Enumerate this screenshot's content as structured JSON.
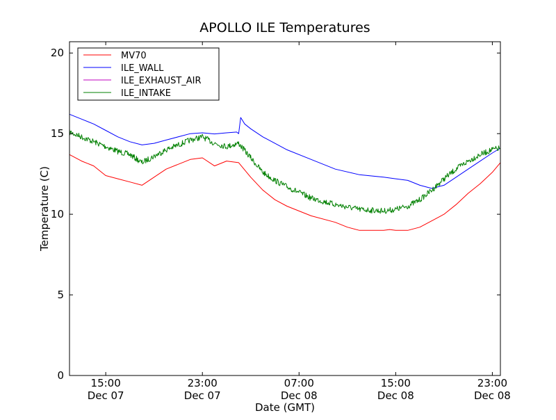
{
  "chart_data": {
    "type": "line",
    "title": "APOLLO ILE Temperatures",
    "xlabel": "Date (GMT)",
    "ylabel": "Temperature (C)",
    "x_unit": "GMT datetime",
    "xlim": [
      "2011-12-07 12:00",
      "2011-12-08 23:40"
    ],
    "ylim": [
      0,
      20.7
    ],
    "yticks": [
      0,
      5,
      10,
      15,
      20
    ],
    "xticks": [
      {
        "x": "2011-12-07 15:00",
        "time": "15:00",
        "date": "Dec 07"
      },
      {
        "x": "2011-12-07 23:00",
        "time": "23:00",
        "date": "Dec 07"
      },
      {
        "x": "2011-12-08 07:00",
        "time": "07:00",
        "date": "Dec 08"
      },
      {
        "x": "2011-12-08 15:00",
        "time": "15:00",
        "date": "Dec 08"
      },
      {
        "x": "2011-12-08 23:00",
        "time": "23:00",
        "date": "Dec 08"
      }
    ],
    "grid": false,
    "legend": {
      "position": "top-left"
    },
    "series": [
      {
        "name": "MV70",
        "color": "#ff0000",
        "noise": 0,
        "x": [
          "2011-12-07 12:00",
          "2011-12-07 13:00",
          "2011-12-07 14:00",
          "2011-12-07 15:00",
          "2011-12-07 16:00",
          "2011-12-07 17:00",
          "2011-12-07 18:00",
          "2011-12-07 19:00",
          "2011-12-07 20:00",
          "2011-12-07 22:00",
          "2011-12-07 23:00",
          "2011-12-08 00:00",
          "2011-12-08 01:00",
          "2011-12-08 02:00",
          "2011-12-08 03:00",
          "2011-12-08 04:00",
          "2011-12-08 05:00",
          "2011-12-08 06:00",
          "2011-12-08 08:00",
          "2011-12-08 10:00",
          "2011-12-08 11:00",
          "2011-12-08 12:00",
          "2011-12-08 14:00",
          "2011-12-08 14:30",
          "2011-12-08 15:00",
          "2011-12-08 16:00",
          "2011-12-08 17:00",
          "2011-12-08 18:00",
          "2011-12-08 19:00",
          "2011-12-08 20:00",
          "2011-12-08 21:00",
          "2011-12-08 22:00",
          "2011-12-08 23:00",
          "2011-12-08 23:40"
        ],
        "y": [
          13.7,
          13.3,
          13.0,
          12.4,
          12.2,
          12.0,
          11.8,
          12.3,
          12.8,
          13.4,
          13.5,
          13.0,
          13.3,
          13.2,
          12.3,
          11.5,
          10.9,
          10.5,
          9.9,
          9.5,
          9.2,
          9.0,
          9.0,
          9.05,
          9.0,
          9.0,
          9.2,
          9.6,
          10.0,
          10.6,
          11.3,
          11.9,
          12.6,
          13.2
        ]
      },
      {
        "name": "ILE_WALL",
        "color": "#0000ff",
        "noise": 0,
        "x": [
          "2011-12-07 12:00",
          "2011-12-07 13:00",
          "2011-12-07 14:00",
          "2011-12-07 15:00",
          "2011-12-07 16:00",
          "2011-12-07 17:00",
          "2011-12-07 18:00",
          "2011-12-07 19:00",
          "2011-12-07 20:00",
          "2011-12-07 22:00",
          "2011-12-07 23:00",
          "2011-12-08 00:00",
          "2011-12-08 01:00",
          "2011-12-08 01:50",
          "2011-12-08 02:00",
          "2011-12-08 02:10",
          "2011-12-08 02:30",
          "2011-12-08 03:00",
          "2011-12-08 04:00",
          "2011-12-08 05:00",
          "2011-12-08 06:00",
          "2011-12-08 08:00",
          "2011-12-08 10:00",
          "2011-12-08 12:00",
          "2011-12-08 14:00",
          "2011-12-08 15:00",
          "2011-12-08 16:00",
          "2011-12-08 17:00",
          "2011-12-08 18:00",
          "2011-12-08 19:00",
          "2011-12-08 20:00",
          "2011-12-08 21:00",
          "2011-12-08 22:00",
          "2011-12-08 23:00",
          "2011-12-08 23:40"
        ],
        "y": [
          16.2,
          15.9,
          15.6,
          15.2,
          14.8,
          14.5,
          14.3,
          14.4,
          14.6,
          15.0,
          15.05,
          14.98,
          15.05,
          15.1,
          15.0,
          16.0,
          15.6,
          15.3,
          14.8,
          14.4,
          14.0,
          13.4,
          12.8,
          12.45,
          12.3,
          12.2,
          12.1,
          11.8,
          11.6,
          11.8,
          12.3,
          12.8,
          13.3,
          13.8,
          14.1
        ]
      },
      {
        "name": "ILE_EXHAUST_AIR",
        "color": "#bf00bf",
        "noise": 0,
        "x": [],
        "y": []
      },
      {
        "name": "ILE_INTAKE",
        "color": "#008000",
        "noise": 0.18,
        "x": [
          "2011-12-07 12:00",
          "2011-12-07 13:00",
          "2011-12-07 14:00",
          "2011-12-07 15:00",
          "2011-12-07 16:00",
          "2011-12-07 17:00",
          "2011-12-07 18:00",
          "2011-12-07 19:00",
          "2011-12-07 20:00",
          "2011-12-07 22:00",
          "2011-12-07 23:00",
          "2011-12-08 00:00",
          "2011-12-08 01:00",
          "2011-12-08 02:00",
          "2011-12-08 03:00",
          "2011-12-08 04:00",
          "2011-12-08 05:00",
          "2011-12-08 06:00",
          "2011-12-08 08:00",
          "2011-12-08 10:00",
          "2011-12-08 12:00",
          "2011-12-08 14:00",
          "2011-12-08 15:00",
          "2011-12-08 16:00",
          "2011-12-08 17:00",
          "2011-12-08 18:00",
          "2011-12-08 19:00",
          "2011-12-08 20:00",
          "2011-12-08 21:00",
          "2011-12-08 22:00",
          "2011-12-08 23:00",
          "2011-12-08 23:40"
        ],
        "y": [
          15.1,
          14.8,
          14.5,
          14.2,
          13.9,
          13.7,
          13.2,
          13.6,
          14.0,
          14.6,
          14.8,
          14.4,
          14.2,
          14.4,
          13.5,
          12.6,
          12.1,
          11.7,
          11.0,
          10.6,
          10.3,
          10.2,
          10.3,
          10.5,
          10.9,
          11.5,
          12.2,
          12.8,
          13.3,
          13.7,
          14.0,
          14.1
        ]
      }
    ]
  }
}
